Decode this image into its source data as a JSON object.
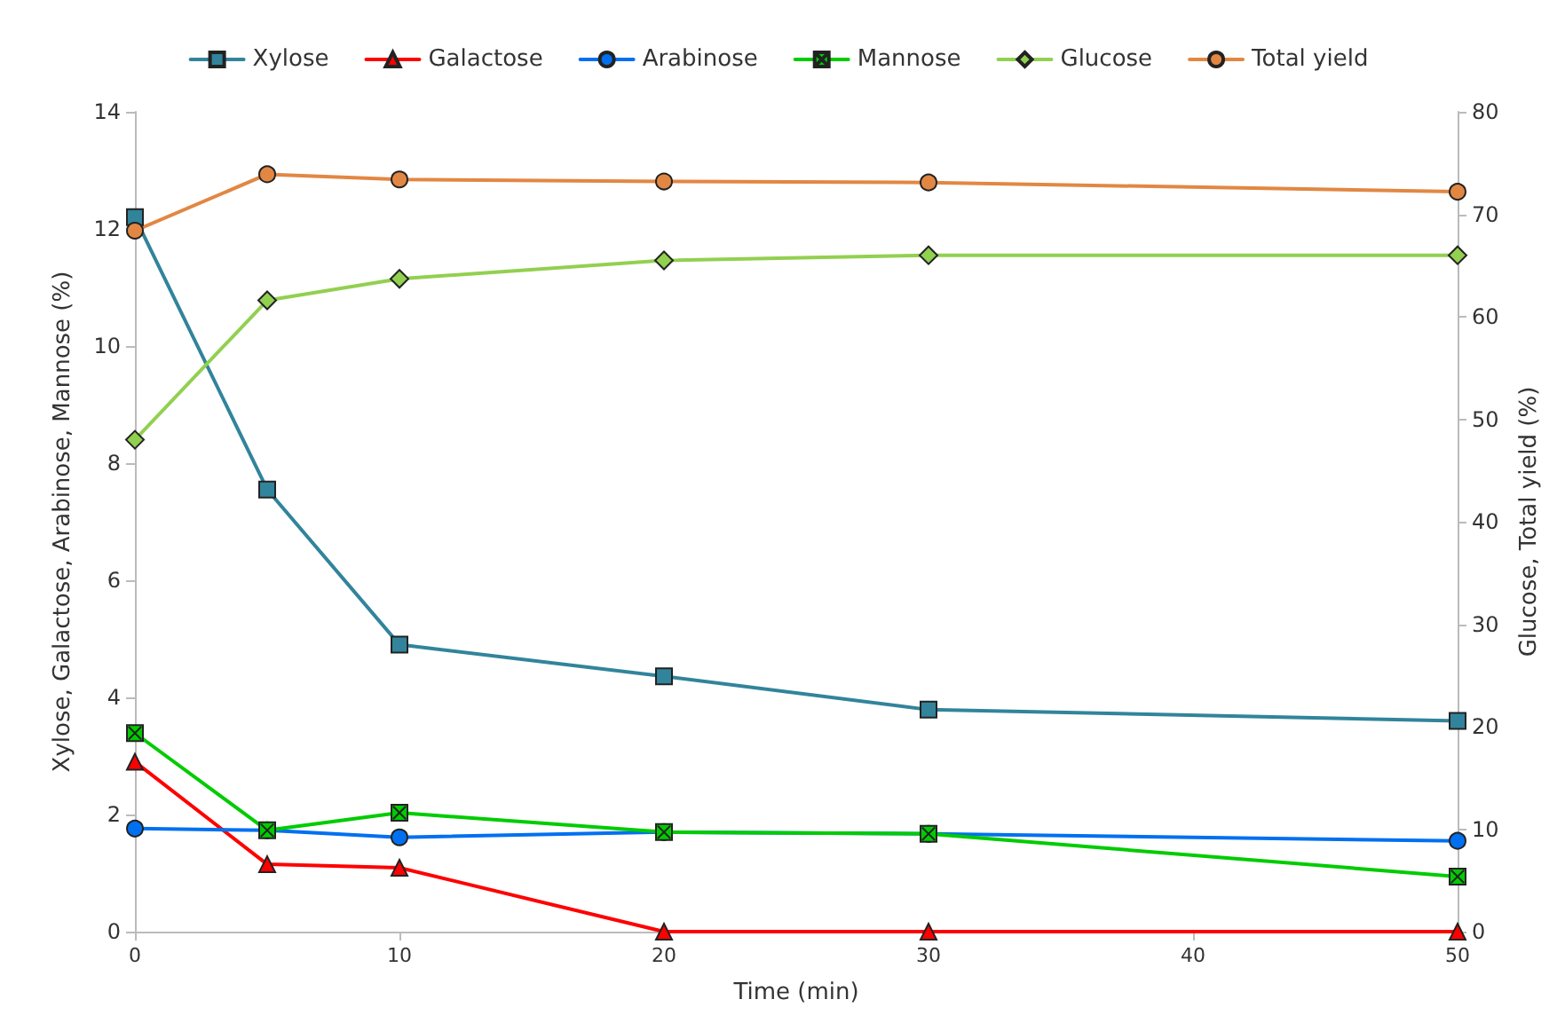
{
  "chart_data": {
    "type": "line",
    "xlabel": "Time (min)",
    "ylabel": "Xylose, Galactose, Arabinose, Mannose (%)",
    "y2label": "Glucose, Total yield (%)",
    "x": [
      0,
      5,
      10,
      20,
      30,
      50
    ],
    "xlim": [
      0,
      50
    ],
    "xticks": [
      0,
      10,
      20,
      30,
      40,
      50
    ],
    "ylim": [
      0,
      14
    ],
    "yticks": [
      0,
      2,
      4,
      6,
      8,
      10,
      12,
      14
    ],
    "y2lim": [
      0,
      80
    ],
    "y2ticks": [
      0,
      10,
      20,
      30,
      40,
      50,
      60,
      70,
      80
    ],
    "grid": false,
    "legend": "top",
    "series": [
      {
        "name": "Xylose",
        "color": "#31849b",
        "marker": "square",
        "values": [
          12.2,
          7.55,
          4.9,
          4.36,
          3.79,
          3.6
        ]
      },
      {
        "name": "Galactose",
        "color": "#ff0000",
        "marker": "triangle",
        "values": [
          2.9,
          1.15,
          1.09,
          0,
          0,
          0
        ]
      },
      {
        "name": "Arabinose",
        "color": "#0070f0",
        "marker": "circle",
        "values": [
          1.76,
          1.73,
          1.61,
          1.7,
          1.67,
          1.55
        ]
      },
      {
        "name": "Mannose",
        "color": "#00cc00",
        "marker": "cross",
        "values": [
          3.39,
          1.73,
          2.03,
          1.7,
          1.67,
          0.94
        ]
      },
      {
        "name": "Glucose",
        "color": "#92d050",
        "marker": "diamond",
        "axis": "y2",
        "values": [
          48,
          61.6,
          63.7,
          65.5,
          66,
          66
        ]
      },
      {
        "name": "Total yield",
        "color": "#e28743",
        "marker": "circle",
        "axis": "y2",
        "values": [
          68.4,
          73.9,
          73.4,
          73.2,
          73.1,
          72.2
        ]
      }
    ]
  }
}
